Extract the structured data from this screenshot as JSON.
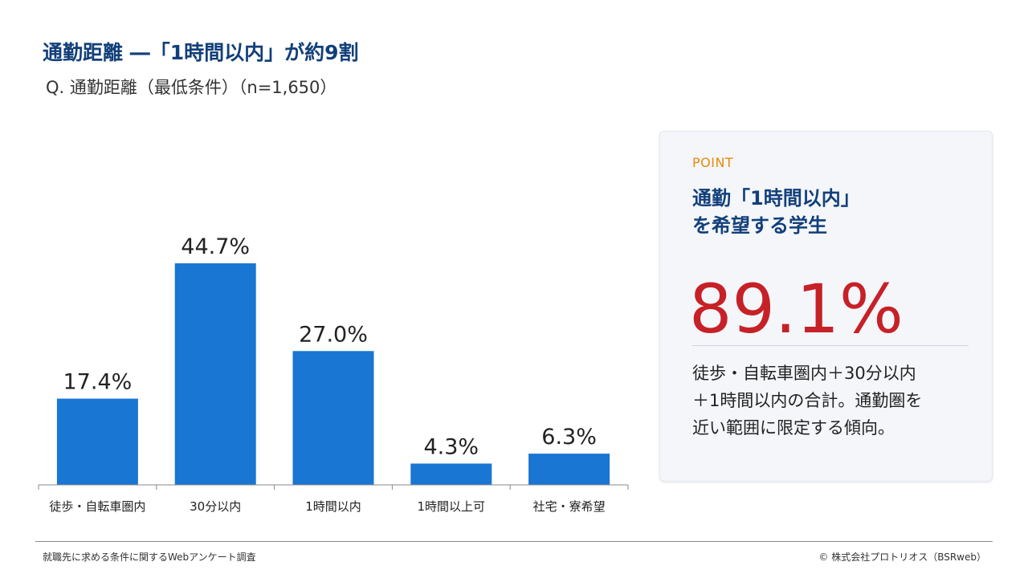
{
  "header": {
    "title": "通勤距離 ―「1時間以内」が約9割",
    "subtitle": "Q. 通勤距離（最低条件）（n=1,650）"
  },
  "chart_data": {
    "type": "bar",
    "categories": [
      "徒歩・自転車圏内",
      "30分以内",
      "1時間以内",
      "1時間以上可",
      "社宅・寮希望"
    ],
    "values": [
      17.4,
      44.7,
      27.0,
      4.3,
      6.3
    ],
    "value_labels": [
      "17.4%",
      "44.7%",
      "27.0%",
      "4.3%",
      "6.3%"
    ],
    "ylim": [
      0,
      50
    ],
    "grid": false,
    "legend": "none",
    "bar_color": "#1976d2"
  },
  "point": {
    "label": "POINT",
    "heading_line1": "通勤「1時間以内」",
    "heading_line2": "を希望する学生",
    "value": "89.1%",
    "text_line1": "徒歩・自転車圏内＋30分以内",
    "text_line2": "＋1時間以内の合計。通勤圏を",
    "text_line3": "近い範囲に限定する傾向。"
  },
  "footer": {
    "source": "就職先に求める条件に関するWebアンケート調査",
    "copyright": "© 株式会社プロトリオス（BSRweb）"
  },
  "colors": {
    "title": "#123f7a",
    "accent_orange": "#e8890c",
    "highlight_red": "#c62127",
    "bar": "#1976d2"
  }
}
